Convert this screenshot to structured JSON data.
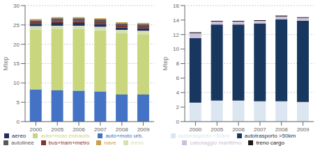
{
  "chart_data": [
    {
      "type": "bar",
      "stacked": true,
      "grid": true,
      "legend": "bottom",
      "categories": [
        "2000",
        "2005",
        "2006",
        "2007",
        "2008",
        "2009"
      ],
      "series": [
        {
          "name": "auto+moto urb.",
          "color": "#4472c4",
          "values": [
            8.3,
            8.1,
            8.0,
            7.8,
            7.0,
            7.0
          ]
        },
        {
          "name": "auto+moto extraurb.",
          "color": "#c9d67e",
          "values": [
            15.5,
            15.8,
            15.9,
            15.8,
            15.8,
            15.6
          ]
        },
        {
          "name": "treno",
          "color": "#d3e2b6",
          "values": [
            0.9,
            0.9,
            0.9,
            0.9,
            0.9,
            0.9
          ]
        },
        {
          "name": "aereo",
          "color": "#1f3060",
          "values": [
            0.6,
            0.7,
            0.7,
            0.7,
            0.6,
            0.6
          ]
        },
        {
          "name": "bus+tram+metro",
          "color": "#833232",
          "values": [
            0.4,
            0.5,
            0.5,
            0.5,
            0.5,
            0.5
          ]
        },
        {
          "name": "autolinee",
          "color": "#595959",
          "values": [
            0.5,
            0.7,
            0.7,
            0.7,
            0.6,
            0.6
          ]
        },
        {
          "name": "nave",
          "color": "#c9a04a",
          "values": [
            0.3,
            0.3,
            0.3,
            0.3,
            0.3,
            0.3
          ]
        }
      ],
      "y_label": "Mtep",
      "ylim": [
        0,
        30
      ],
      "yticks": [
        0,
        5,
        10,
        15,
        20,
        25,
        30
      ]
    },
    {
      "type": "bar",
      "stacked": true,
      "grid": true,
      "legend": "bottom",
      "categories": [
        "2000",
        "2005",
        "2006",
        "2007",
        "2008",
        "2009"
      ],
      "series": [
        {
          "name": "autotrasporto <50km",
          "color": "#dce6f1",
          "values": [
            2.6,
            2.9,
            2.9,
            2.8,
            2.8,
            2.7
          ]
        },
        {
          "name": "autotrasporto >50km",
          "color": "#17375e",
          "values": [
            8.9,
            10.5,
            10.5,
            10.7,
            11.3,
            11.2
          ]
        },
        {
          "name": "cabotaggio marittimo",
          "color": "#ccc0da",
          "values": [
            0.7,
            0.4,
            0.4,
            0.4,
            0.4,
            0.4
          ]
        },
        {
          "name": "treno cargo",
          "color": "#1a1a1a",
          "values": [
            0.1,
            0.1,
            0.1,
            0.1,
            0.1,
            0.1
          ]
        }
      ],
      "y_label": "Mtep",
      "ylim": [
        0,
        16
      ],
      "yticks": [
        0,
        2,
        4,
        6,
        8,
        10,
        12,
        14,
        16
      ]
    }
  ]
}
